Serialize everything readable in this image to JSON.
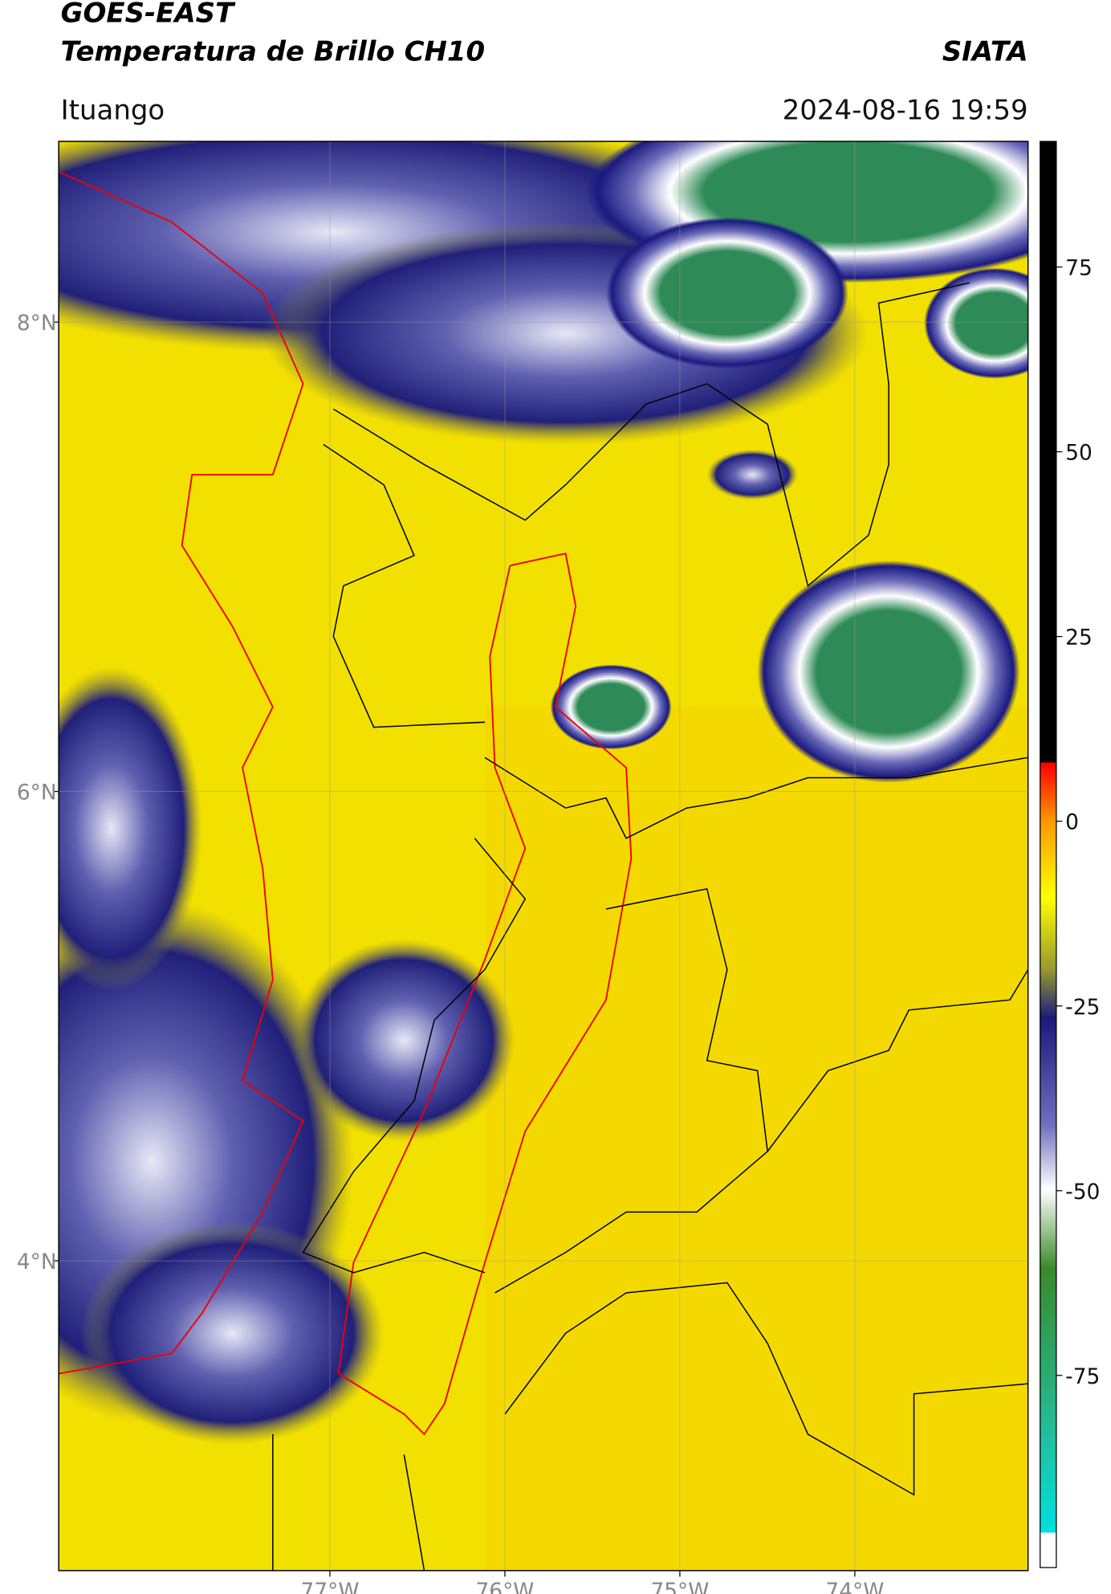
{
  "header": {
    "title_line1": "GOES-EAST",
    "title_line2": "Temperatura de Brillo CH10",
    "credit": "SIATA",
    "location": "Ituango",
    "datetime": "2024-08-16 19:59"
  },
  "map": {
    "type": "map",
    "xlim": [
      -78.55,
      -73.01
    ],
    "ylim": [
      2.68,
      8.77
    ],
    "xticks": [
      {
        "value": -77,
        "label": "77°W"
      },
      {
        "value": -76,
        "label": "76°W"
      },
      {
        "value": -75,
        "label": "75°W"
      },
      {
        "value": -74,
        "label": "74°W"
      }
    ],
    "yticks": [
      {
        "value": 8,
        "label": "8°N"
      },
      {
        "value": 6,
        "label": "6°N"
      },
      {
        "value": 4,
        "label": "4°N"
      }
    ],
    "grid": true
  },
  "colorbar": {
    "clim": [
      -101,
      92
    ],
    "ticks": [
      75,
      50,
      25,
      0,
      -25,
      -50,
      -75
    ]
  }
}
